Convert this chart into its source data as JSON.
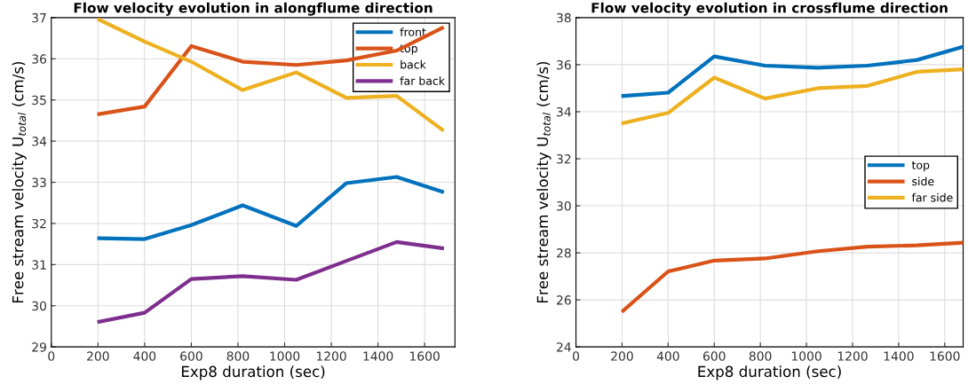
{
  "chart_data": [
    {
      "type": "line",
      "title": "Flow velocity evolution in alongflume direction",
      "xlabel": "Exp8 duration (sec)",
      "ylabel": "Free stream velocity U$_{total}$ (cm/s)",
      "x": [
        205,
        400,
        600,
        820,
        1050,
        1265,
        1480,
        1675
      ],
      "xlim": [
        0,
        1730
      ],
      "xticks": [
        0,
        200,
        400,
        600,
        800,
        1000,
        1200,
        1400,
        1600
      ],
      "ylim": [
        29,
        37
      ],
      "yticks": [
        29,
        30,
        31,
        32,
        33,
        34,
        35,
        36,
        37
      ],
      "grid": true,
      "legend": "top right",
      "marker": "none",
      "line_style": "solid",
      "series": [
        {
          "name": "front",
          "color": "#0072bd",
          "values": [
            31.64,
            31.62,
            31.96,
            32.44,
            31.94,
            32.98,
            33.13,
            32.77
          ]
        },
        {
          "name": "top",
          "color": "#d95319",
          "values": [
            34.66,
            34.84,
            36.31,
            35.93,
            35.85,
            35.96,
            36.2,
            36.75
          ]
        },
        {
          "name": "back",
          "color": "#edb120",
          "values": [
            36.95,
            36.42,
            35.93,
            35.24,
            35.67,
            35.05,
            35.1,
            34.28
          ]
        },
        {
          "name": "far back",
          "color": "#7e2f8e",
          "values": [
            29.61,
            29.83,
            30.65,
            30.72,
            30.63,
            31.09,
            31.55,
            31.4
          ]
        }
      ]
    },
    {
      "type": "line",
      "title": "Flow velocity evolution in crossflume direction",
      "xlabel": "Exp8 duration (sec)",
      "ylabel": "Free stream velocity U$_{total}$ (cm/s)",
      "x": [
        205,
        400,
        600,
        820,
        1050,
        1265,
        1480,
        1675
      ],
      "xlim": [
        0,
        1680
      ],
      "xticks": [
        0,
        200,
        400,
        600,
        800,
        1000,
        1200,
        1400,
        1600
      ],
      "ylim": [
        24,
        38
      ],
      "yticks": [
        24,
        26,
        28,
        30,
        32,
        34,
        36,
        38
      ],
      "grid": true,
      "legend": "right",
      "marker": "none",
      "line_style": "solid",
      "series": [
        {
          "name": "top",
          "color": "#0072bd",
          "values": [
            34.67,
            34.81,
            36.35,
            35.96,
            35.87,
            35.96,
            36.2,
            36.75
          ]
        },
        {
          "name": "side",
          "color": "#d95319",
          "values": [
            25.54,
            27.21,
            27.67,
            27.76,
            28.07,
            28.26,
            28.32,
            28.43
          ]
        },
        {
          "name": "far side",
          "color": "#edb120",
          "values": [
            33.52,
            33.95,
            35.45,
            34.56,
            35.0,
            35.1,
            35.7,
            35.8
          ]
        }
      ]
    }
  ]
}
